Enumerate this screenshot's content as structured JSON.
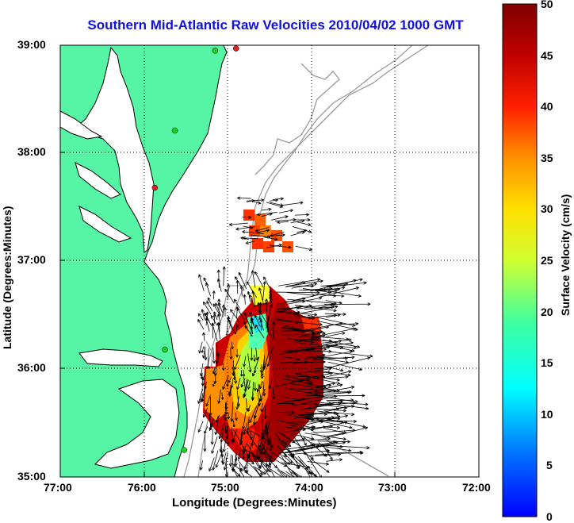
{
  "title": "Southern Mid-Atlantic Raw Velocities 2010/04/02 1000 GMT",
  "map": {
    "x_label": "Longitude (Degrees:Minutes)",
    "y_label": "Latitude (Degrees:Minutes)",
    "x_ticks": [
      "77:00",
      "76:00",
      "75:00",
      "74:00",
      "73:00",
      "72:00"
    ],
    "y_ticks": [
      "39:00",
      "38:00",
      "37:00",
      "36:00",
      "35:00"
    ],
    "lon_range": [
      -77,
      -72
    ],
    "lat_range": [
      35,
      39
    ],
    "grid": true,
    "land_color": "#55f5a5",
    "coastline_color": "#000000",
    "bathymetry_color": "#999999"
  },
  "stations": [
    {
      "color": "#e02020",
      "lon": -74.9,
      "lat": 38.97
    },
    {
      "color": "#20d020",
      "lon": -75.15,
      "lat": 38.95
    },
    {
      "color": "#20d020",
      "lon": -75.63,
      "lat": 38.21
    },
    {
      "color": "#e02020",
      "lon": -75.87,
      "lat": 37.68
    },
    {
      "color": "#20d020",
      "lon": -75.75,
      "lat": 36.18
    },
    {
      "color": "#20d020",
      "lon": -75.52,
      "lat": 35.25
    }
  ],
  "colorbar": {
    "label": "Surface Velocity (cm/s)",
    "ticks": [
      "50",
      "45",
      "40",
      "35",
      "30",
      "25",
      "20",
      "15",
      "10",
      "5",
      "0"
    ],
    "range": [
      0,
      50
    ],
    "colormap": [
      "#0000ff",
      "#00b0ff",
      "#00ffff",
      "#60ff90",
      "#ffff00",
      "#ffa000",
      "#ff0000",
      "#b00000",
      "#800000"
    ]
  }
}
